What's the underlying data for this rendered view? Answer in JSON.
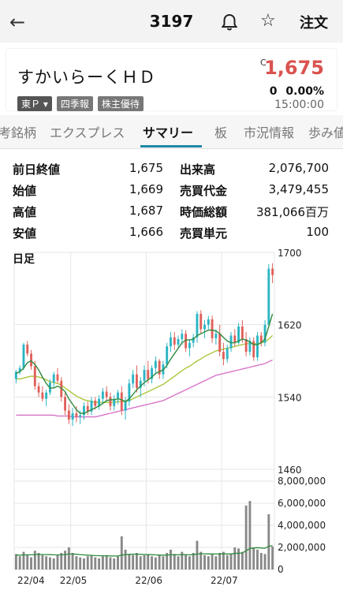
{
  "header": {
    "code": "3197",
    "order_label": "注文"
  },
  "quote": {
    "name": "すかいらーくＨＤ",
    "market": "東Ｐ ▾",
    "badge1": "四季報",
    "badge2": "株主優待",
    "c_mark": "C",
    "price": "1,675",
    "change": "0",
    "change_pct": "0.00%",
    "time": "15:00:00"
  },
  "tabs": [
    {
      "label": "考銘柄"
    },
    {
      "label": "エクスプレス"
    },
    {
      "label": "サマリー"
    },
    {
      "label": "板"
    },
    {
      "label": "市況情報"
    },
    {
      "label": "歩み値"
    }
  ],
  "stats": [
    {
      "l1": "前日終値",
      "v1": "1,675",
      "l2": "出来高",
      "v2": "2,076,700"
    },
    {
      "l1": "始値",
      "v1": "1,669",
      "l2": "売買代金",
      "v2": "3,479,455"
    },
    {
      "l1": "高値",
      "v1": "1,687",
      "l2": "時価総額",
      "v2": "381,066百万"
    },
    {
      "l1": "安値",
      "v1": "1,666",
      "l2": "売買単元",
      "v2": "100"
    }
  ],
  "chart_label": "日足",
  "chart_data": {
    "type": "candlestick",
    "price_axis": {
      "ticks": [
        1700,
        1620,
        1540,
        1460
      ],
      "ylim": [
        1460,
        1700
      ]
    },
    "volume_axis": {
      "ticks": [
        "8,000,000",
        "6,000,000",
        "4,000,000",
        "2,000,000",
        "0"
      ],
      "ylim": [
        0,
        8000000
      ]
    },
    "x_labels": [
      "22/04",
      "22/05",
      "22/06",
      "22/07"
    ],
    "colors": {
      "up": "#2bb5c4",
      "down": "#e0605a",
      "ma_short": "#2e8b3f",
      "ma_mid": "#a8c73a",
      "ma_long": "#d874c8",
      "vol_bar": "#888888"
    },
    "candles": [
      [
        1560,
        1570,
        1555,
        1568
      ],
      [
        1568,
        1575,
        1565,
        1572
      ],
      [
        1572,
        1600,
        1570,
        1598
      ],
      [
        1598,
        1602,
        1585,
        1588
      ],
      [
        1588,
        1592,
        1570,
        1574
      ],
      [
        1574,
        1580,
        1548,
        1552
      ],
      [
        1552,
        1556,
        1540,
        1545
      ],
      [
        1545,
        1552,
        1535,
        1538
      ],
      [
        1538,
        1548,
        1530,
        1545
      ],
      [
        1545,
        1560,
        1542,
        1556
      ],
      [
        1556,
        1568,
        1550,
        1565
      ],
      [
        1565,
        1572,
        1555,
        1558
      ],
      [
        1558,
        1562,
        1535,
        1540
      ],
      [
        1540,
        1545,
        1520,
        1525
      ],
      [
        1525,
        1532,
        1510,
        1515
      ],
      [
        1515,
        1528,
        1508,
        1522
      ],
      [
        1522,
        1530,
        1512,
        1518
      ],
      [
        1518,
        1525,
        1510,
        1520
      ],
      [
        1520,
        1534,
        1515,
        1530
      ],
      [
        1530,
        1535,
        1520,
        1524
      ],
      [
        1524,
        1540,
        1520,
        1536
      ],
      [
        1536,
        1540,
        1526,
        1530
      ],
      [
        1530,
        1542,
        1526,
        1538
      ],
      [
        1538,
        1550,
        1532,
        1546
      ],
      [
        1546,
        1552,
        1536,
        1540
      ],
      [
        1540,
        1545,
        1525,
        1530
      ],
      [
        1530,
        1542,
        1525,
        1538
      ],
      [
        1538,
        1548,
        1532,
        1545
      ],
      [
        1545,
        1552,
        1520,
        1525
      ],
      [
        1525,
        1540,
        1515,
        1535
      ],
      [
        1535,
        1560,
        1530,
        1555
      ],
      [
        1555,
        1570,
        1550,
        1565
      ],
      [
        1565,
        1575,
        1545,
        1550
      ],
      [
        1550,
        1562,
        1540,
        1558
      ],
      [
        1558,
        1575,
        1552,
        1570
      ],
      [
        1570,
        1580,
        1555,
        1560
      ],
      [
        1560,
        1575,
        1555,
        1572
      ],
      [
        1572,
        1585,
        1565,
        1580
      ],
      [
        1580,
        1582,
        1560,
        1565
      ],
      [
        1565,
        1580,
        1560,
        1576
      ],
      [
        1576,
        1600,
        1572,
        1596
      ],
      [
        1596,
        1612,
        1590,
        1606
      ],
      [
        1606,
        1612,
        1592,
        1598
      ],
      [
        1598,
        1608,
        1595,
        1604
      ],
      [
        1604,
        1615,
        1598,
        1610
      ],
      [
        1610,
        1614,
        1590,
        1594
      ],
      [
        1594,
        1604,
        1585,
        1600
      ],
      [
        1600,
        1610,
        1595,
        1606
      ],
      [
        1606,
        1635,
        1600,
        1632
      ],
      [
        1632,
        1636,
        1610,
        1615
      ],
      [
        1615,
        1625,
        1605,
        1620
      ],
      [
        1620,
        1630,
        1615,
        1626
      ],
      [
        1626,
        1630,
        1600,
        1605
      ],
      [
        1605,
        1615,
        1598,
        1610
      ],
      [
        1610,
        1620,
        1585,
        1590
      ],
      [
        1590,
        1600,
        1575,
        1582
      ],
      [
        1582,
        1598,
        1578,
        1594
      ],
      [
        1594,
        1612,
        1590,
        1608
      ],
      [
        1608,
        1615,
        1596,
        1600
      ],
      [
        1600,
        1622,
        1598,
        1618
      ],
      [
        1618,
        1625,
        1600,
        1604
      ],
      [
        1604,
        1612,
        1585,
        1590
      ],
      [
        1590,
        1606,
        1586,
        1602
      ],
      [
        1602,
        1606,
        1580,
        1584
      ],
      [
        1584,
        1612,
        1580,
        1608
      ],
      [
        1608,
        1612,
        1596,
        1600
      ],
      [
        1600,
        1625,
        1596,
        1620
      ],
      [
        1620,
        1687,
        1618,
        1682
      ],
      [
        1682,
        1688,
        1666,
        1675
      ]
    ],
    "ma_short": [
      1566,
      1568,
      1572,
      1578,
      1580,
      1576,
      1570,
      1562,
      1555,
      1550,
      1550,
      1552,
      1550,
      1546,
      1538,
      1532,
      1526,
      1522,
      1522,
      1524,
      1526,
      1528,
      1530,
      1533,
      1536,
      1537,
      1537,
      1538,
      1537,
      1535,
      1538,
      1543,
      1548,
      1552,
      1556,
      1559,
      1562,
      1566,
      1568,
      1570,
      1575,
      1582,
      1588,
      1594,
      1600,
      1603,
      1603,
      1604,
      1608,
      1610,
      1612,
      1614,
      1614,
      1613,
      1610,
      1606,
      1602,
      1600,
      1600,
      1602,
      1604,
      1603,
      1601,
      1598,
      1598,
      1600,
      1604,
      1618,
      1632
    ],
    "ma_mid": [
      1560,
      1560,
      1561,
      1562,
      1563,
      1563,
      1562,
      1561,
      1559,
      1557,
      1556,
      1555,
      1553,
      1550,
      1547,
      1544,
      1541,
      1539,
      1537,
      1536,
      1535,
      1534,
      1534,
      1534,
      1534,
      1534,
      1534,
      1535,
      1535,
      1535,
      1536,
      1538,
      1540,
      1542,
      1544,
      1546,
      1548,
      1550,
      1552,
      1554,
      1557,
      1560,
      1563,
      1566,
      1569,
      1572,
      1574,
      1577,
      1580,
      1582,
      1585,
      1587,
      1589,
      1591,
      1592,
      1593,
      1594,
      1595,
      1596,
      1597,
      1598,
      1599,
      1599,
      1599,
      1599,
      1600,
      1601,
      1604,
      1608
    ],
    "ma_long": [
      1520,
      1520,
      1520,
      1520,
      1520,
      1520,
      1520,
      1520,
      1520,
      1520,
      1520,
      1519,
      1519,
      1519,
      1519,
      1518,
      1518,
      1518,
      1518,
      1518,
      1518,
      1518,
      1519,
      1520,
      1521,
      1522,
      1523,
      1524,
      1525,
      1526,
      1527,
      1528,
      1529,
      1530,
      1531,
      1532,
      1533,
      1534,
      1535,
      1536,
      1538,
      1540,
      1542,
      1544,
      1546,
      1548,
      1550,
      1552,
      1554,
      1556,
      1558,
      1560,
      1562,
      1564,
      1565,
      1566,
      1567,
      1568,
      1569,
      1570,
      1571,
      1572,
      1573,
      1574,
      1575,
      1576,
      1577,
      1579,
      1581
    ],
    "volumes": [
      1400000,
      1200000,
      1600000,
      1300000,
      1100000,
      1700000,
      1500000,
      1300000,
      1200000,
      1100000,
      1000000,
      1300000,
      1500000,
      1700000,
      2000000,
      1500000,
      1200000,
      1100000,
      1000000,
      1200000,
      1300000,
      1100000,
      1000000,
      1200000,
      1300000,
      1100000,
      1000000,
      1200000,
      3000000,
      1800000,
      1400000,
      1300000,
      1500000,
      1200000,
      1300000,
      1400000,
      1200000,
      1100000,
      1300000,
      1200000,
      1500000,
      1800000,
      1400000,
      1200000,
      1600000,
      1300000,
      1200000,
      1500000,
      2600000,
      1600000,
      1300000,
      1200000,
      1400000,
      1200000,
      1500000,
      1600000,
      1300000,
      1400000,
      2000000,
      1900000,
      1600000,
      5800000,
      6200000,
      2000000,
      1800000,
      1500000,
      1400000,
      5000000,
      2076700
    ],
    "vol_ma": [
      1300000,
      1300000,
      1320000,
      1330000,
      1330000,
      1350000,
      1360000,
      1360000,
      1350000,
      1340000,
      1330000,
      1320000,
      1330000,
      1350000,
      1400000,
      1400000,
      1380000,
      1350000,
      1320000,
      1300000,
      1280000,
      1260000,
      1250000,
      1240000,
      1240000,
      1230000,
      1220000,
      1220000,
      1300000,
      1350000,
      1370000,
      1380000,
      1390000,
      1370000,
      1360000,
      1350000,
      1340000,
      1320000,
      1310000,
      1300000,
      1310000,
      1330000,
      1340000,
      1330000,
      1340000,
      1340000,
      1330000,
      1340000,
      1400000,
      1420000,
      1420000,
      1410000,
      1410000,
      1400000,
      1410000,
      1420000,
      1410000,
      1410000,
      1450000,
      1480000,
      1490000,
      1700000,
      1900000,
      1950000,
      1980000,
      1950000,
      1920000,
      2100000,
      2150000
    ]
  }
}
